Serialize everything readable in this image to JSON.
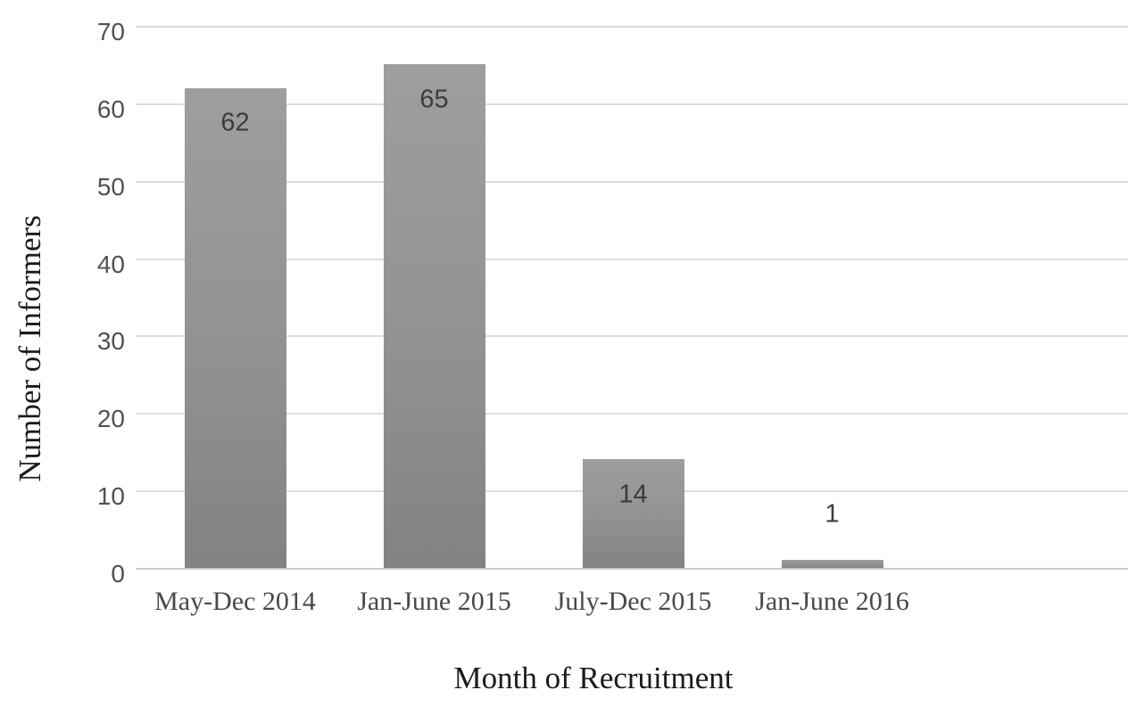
{
  "chart_data": {
    "type": "bar",
    "title": "",
    "categories": [
      "May-Dec 2014",
      "Jan-June 2015",
      "July-Dec 2015",
      "Jan-June 2016"
    ],
    "values": [
      62,
      65,
      14,
      1
    ],
    "data_labels": [
      "62",
      "65",
      "14",
      "1"
    ],
    "xlabel": "Month of Recruitment",
    "ylabel": "Number of Informers",
    "ylim": [
      0,
      70
    ],
    "yticks": [
      0,
      10,
      20,
      30,
      40,
      50,
      60,
      70
    ],
    "grid": "horizontal",
    "legend": "none",
    "colors": {
      "bar_top": "#9e9e9e",
      "bar_bottom": "#828282",
      "gridline": "#dcdcdc",
      "axis_line": "#c9c9c9",
      "tick_label": "#515151",
      "category_label": "#494949",
      "data_label": "#3c3c3c",
      "axis_title": "#1b1b1b",
      "background": "#ffffff"
    }
  }
}
